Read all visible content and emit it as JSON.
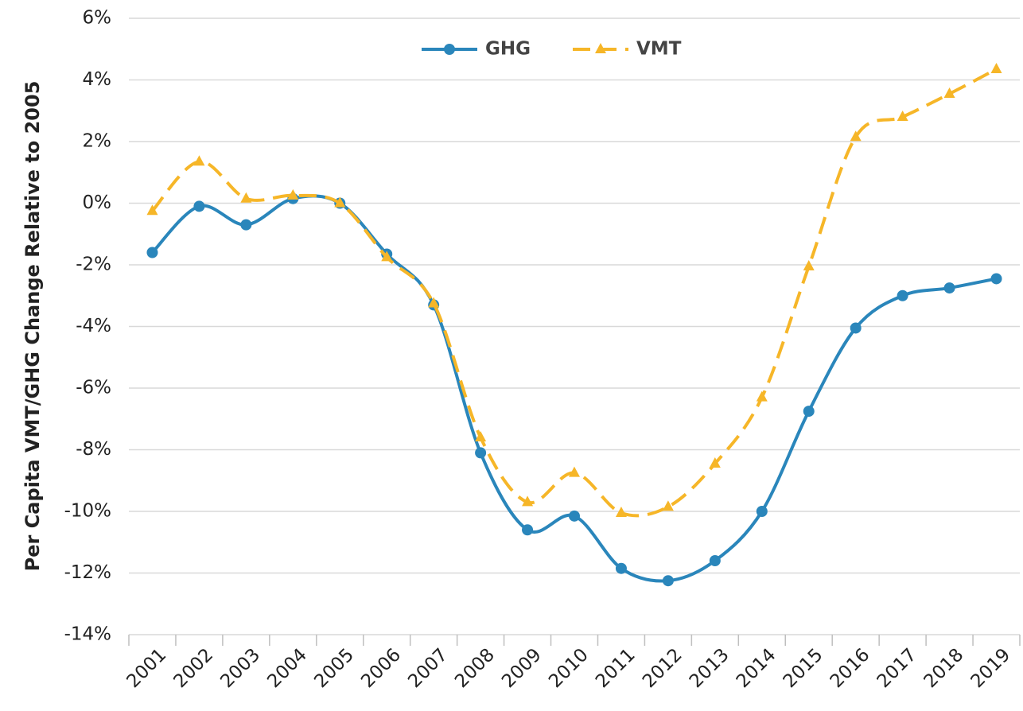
{
  "chart_data": {
    "type": "line",
    "y_axis_label": "Per Capita VMT/GHG Change Relative to 2005",
    "categories": [
      "2001",
      "2002",
      "2003",
      "2004",
      "2005",
      "2006",
      "2007",
      "2008",
      "2009",
      "2010",
      "2011",
      "2012",
      "2013",
      "2014",
      "2015",
      "2016",
      "2017",
      "2018",
      "2019"
    ],
    "series": [
      {
        "name": "GHG",
        "color": "#2a86bb",
        "marker": "circle",
        "dashed": false,
        "values": [
          -1.6,
          -0.1,
          -0.7,
          0.15,
          0,
          -1.65,
          -3.3,
          -8.1,
          -10.6,
          -10.15,
          -11.85,
          -12.25,
          -11.6,
          -10.0,
          -6.75,
          -4.05,
          -3.0,
          -2.75,
          -2.45
        ]
      },
      {
        "name": "VMT",
        "color": "#f6b628",
        "marker": "triangle",
        "dashed": true,
        "values": [
          -0.25,
          1.35,
          0.15,
          0.25,
          0,
          -1.75,
          -3.25,
          -7.6,
          -9.7,
          -8.75,
          -10.05,
          -9.85,
          -8.45,
          -6.3,
          -2.05,
          2.15,
          2.8,
          3.55,
          4.35
        ]
      }
    ],
    "ylim": [
      -14,
      6
    ],
    "yticks": [
      {
        "value": -14,
        "label": "-14%"
      },
      {
        "value": -12,
        "label": "-12%"
      },
      {
        "value": -10,
        "label": "-10%"
      },
      {
        "value": -8,
        "label": "-8%"
      },
      {
        "value": -6,
        "label": "-6%"
      },
      {
        "value": -4,
        "label": "-4%"
      },
      {
        "value": -2,
        "label": "-2%"
      },
      {
        "value": 0,
        "label": "0%"
      },
      {
        "value": 2,
        "label": "2%"
      },
      {
        "value": 4,
        "label": "4%"
      },
      {
        "value": 6,
        "label": "6%"
      }
    ],
    "grid": true,
    "smooth": true,
    "legend": "top"
  }
}
